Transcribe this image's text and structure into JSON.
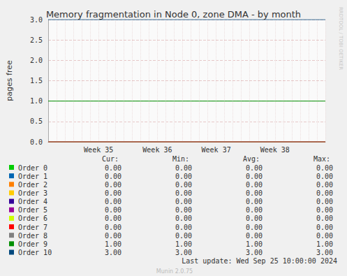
{
  "chart_data": {
    "type": "line",
    "title": "Memory fragmentation in Node 0, zone DMA - by month",
    "y_label": "pages free",
    "categories": [
      null,
      null,
      null,
      null,
      null,
      null,
      "Week 35",
      null,
      null,
      null,
      null,
      null,
      null,
      "Week 36",
      null,
      null,
      null,
      null,
      null,
      null,
      "Week 37",
      null,
      null,
      null,
      null,
      null,
      null,
      "Week 38",
      null,
      null,
      null,
      null,
      null,
      null
    ],
    "ylim": [
      0,
      3
    ],
    "yticks": [
      {
        "value": 0,
        "label": "0.0"
      },
      {
        "value": 0.5,
        "label": "0.5"
      },
      {
        "value": 1,
        "label": "1.0"
      },
      {
        "value": 1.5,
        "label": "1.5"
      },
      {
        "value": 2,
        "label": "2.0"
      },
      {
        "value": 2.5,
        "label": "2.5"
      },
      {
        "value": 3,
        "label": "3.0"
      }
    ],
    "grid": true,
    "stats_columns": [
      "Cur:",
      "Min:",
      "Avg:",
      "Max:"
    ],
    "series": [
      {
        "name": "Order 0",
        "color": "#00cc00",
        "stats": [
          "0.00",
          "0.00",
          "0.00",
          "0.00"
        ],
        "values": [
          0,
          0,
          0,
          0,
          0,
          0,
          0,
          0,
          0,
          0,
          0,
          0,
          0,
          0,
          0,
          0,
          0,
          0,
          0,
          0,
          0,
          0,
          0,
          0,
          0,
          0,
          0,
          0,
          0,
          0,
          0,
          0,
          0,
          0
        ]
      },
      {
        "name": "Order 1",
        "color": "#0066b3",
        "stats": [
          "0.00",
          "0.00",
          "0.00",
          "0.00"
        ],
        "values": [
          0,
          0,
          0,
          0,
          0,
          0,
          0,
          0,
          0,
          0,
          0,
          0,
          0,
          0,
          0,
          0,
          0,
          0,
          0,
          0,
          0,
          0,
          0,
          0,
          0,
          0,
          0,
          0,
          0,
          0,
          0,
          0,
          0,
          0
        ]
      },
      {
        "name": "Order 2",
        "color": "#ff8000",
        "stats": [
          "0.00",
          "0.00",
          "0.00",
          "0.00"
        ],
        "values": [
          0,
          0,
          0,
          0,
          0,
          0,
          0,
          0,
          0,
          0,
          0,
          0,
          0,
          0,
          0,
          0,
          0,
          0,
          0,
          0,
          0,
          0,
          0,
          0,
          0,
          0,
          0,
          0,
          0,
          0,
          0,
          0,
          0,
          0
        ]
      },
      {
        "name": "Order 3",
        "color": "#ffcc00",
        "stats": [
          "0.00",
          "0.00",
          "0.00",
          "0.00"
        ],
        "values": [
          0,
          0,
          0,
          0,
          0,
          0,
          0,
          0,
          0,
          0,
          0,
          0,
          0,
          0,
          0,
          0,
          0,
          0,
          0,
          0,
          0,
          0,
          0,
          0,
          0,
          0,
          0,
          0,
          0,
          0,
          0,
          0,
          0,
          0
        ]
      },
      {
        "name": "Order 4",
        "color": "#330099",
        "stats": [
          "0.00",
          "0.00",
          "0.00",
          "0.00"
        ],
        "values": [
          0,
          0,
          0,
          0,
          0,
          0,
          0,
          0,
          0,
          0,
          0,
          0,
          0,
          0,
          0,
          0,
          0,
          0,
          0,
          0,
          0,
          0,
          0,
          0,
          0,
          0,
          0,
          0,
          0,
          0,
          0,
          0,
          0,
          0
        ]
      },
      {
        "name": "Order 5",
        "color": "#990099",
        "stats": [
          "0.00",
          "0.00",
          "0.00",
          "0.00"
        ],
        "values": [
          0,
          0,
          0,
          0,
          0,
          0,
          0,
          0,
          0,
          0,
          0,
          0,
          0,
          0,
          0,
          0,
          0,
          0,
          0,
          0,
          0,
          0,
          0,
          0,
          0,
          0,
          0,
          0,
          0,
          0,
          0,
          0,
          0,
          0
        ]
      },
      {
        "name": "Order 6",
        "color": "#ccff00",
        "stats": [
          "0.00",
          "0.00",
          "0.00",
          "0.00"
        ],
        "values": [
          0,
          0,
          0,
          0,
          0,
          0,
          0,
          0,
          0,
          0,
          0,
          0,
          0,
          0,
          0,
          0,
          0,
          0,
          0,
          0,
          0,
          0,
          0,
          0,
          0,
          0,
          0,
          0,
          0,
          0,
          0,
          0,
          0,
          0
        ]
      },
      {
        "name": "Order 7",
        "color": "#ff0000",
        "stats": [
          "0.00",
          "0.00",
          "0.00",
          "0.00"
        ],
        "values": [
          0,
          0,
          0,
          0,
          0,
          0,
          0,
          0,
          0,
          0,
          0,
          0,
          0,
          0,
          0,
          0,
          0,
          0,
          0,
          0,
          0,
          0,
          0,
          0,
          0,
          0,
          0,
          0,
          0,
          0,
          0,
          0,
          0,
          0
        ]
      },
      {
        "name": "Order 8",
        "color": "#808080",
        "stats": [
          "0.00",
          "0.00",
          "0.00",
          "0.00"
        ],
        "values": [
          0,
          0,
          0,
          0,
          0,
          0,
          0,
          0,
          0,
          0,
          0,
          0,
          0,
          0,
          0,
          0,
          0,
          0,
          0,
          0,
          0,
          0,
          0,
          0,
          0,
          0,
          0,
          0,
          0,
          0,
          0,
          0,
          0,
          0
        ]
      },
      {
        "name": "Order 9",
        "color": "#008f00",
        "stats": [
          "1.00",
          "1.00",
          "1.00",
          "1.00"
        ],
        "values": [
          1,
          1,
          1,
          1,
          1,
          1,
          1,
          1,
          1,
          1,
          1,
          1,
          1,
          1,
          1,
          1,
          1,
          1,
          1,
          1,
          1,
          1,
          1,
          1,
          1,
          1,
          1,
          1,
          1,
          1,
          1,
          1,
          1,
          1
        ]
      },
      {
        "name": "Order 10",
        "color": "#00487d",
        "stats": [
          "3.00",
          "3.00",
          "3.00",
          "3.00"
        ],
        "values": [
          3,
          3,
          3,
          3,
          3,
          3,
          3,
          3,
          3,
          3,
          3,
          3,
          3,
          3,
          3,
          3,
          3,
          3,
          3,
          3,
          3,
          3,
          3,
          3,
          3,
          3,
          3,
          3,
          3,
          3,
          3,
          3,
          3,
          3
        ]
      }
    ],
    "last_update": "Last update: Wed Sep 25 10:00:00 2024",
    "footer": "Munin 2.0.75",
    "side_text": "RRDTOOL / TOBI OETIKER"
  }
}
